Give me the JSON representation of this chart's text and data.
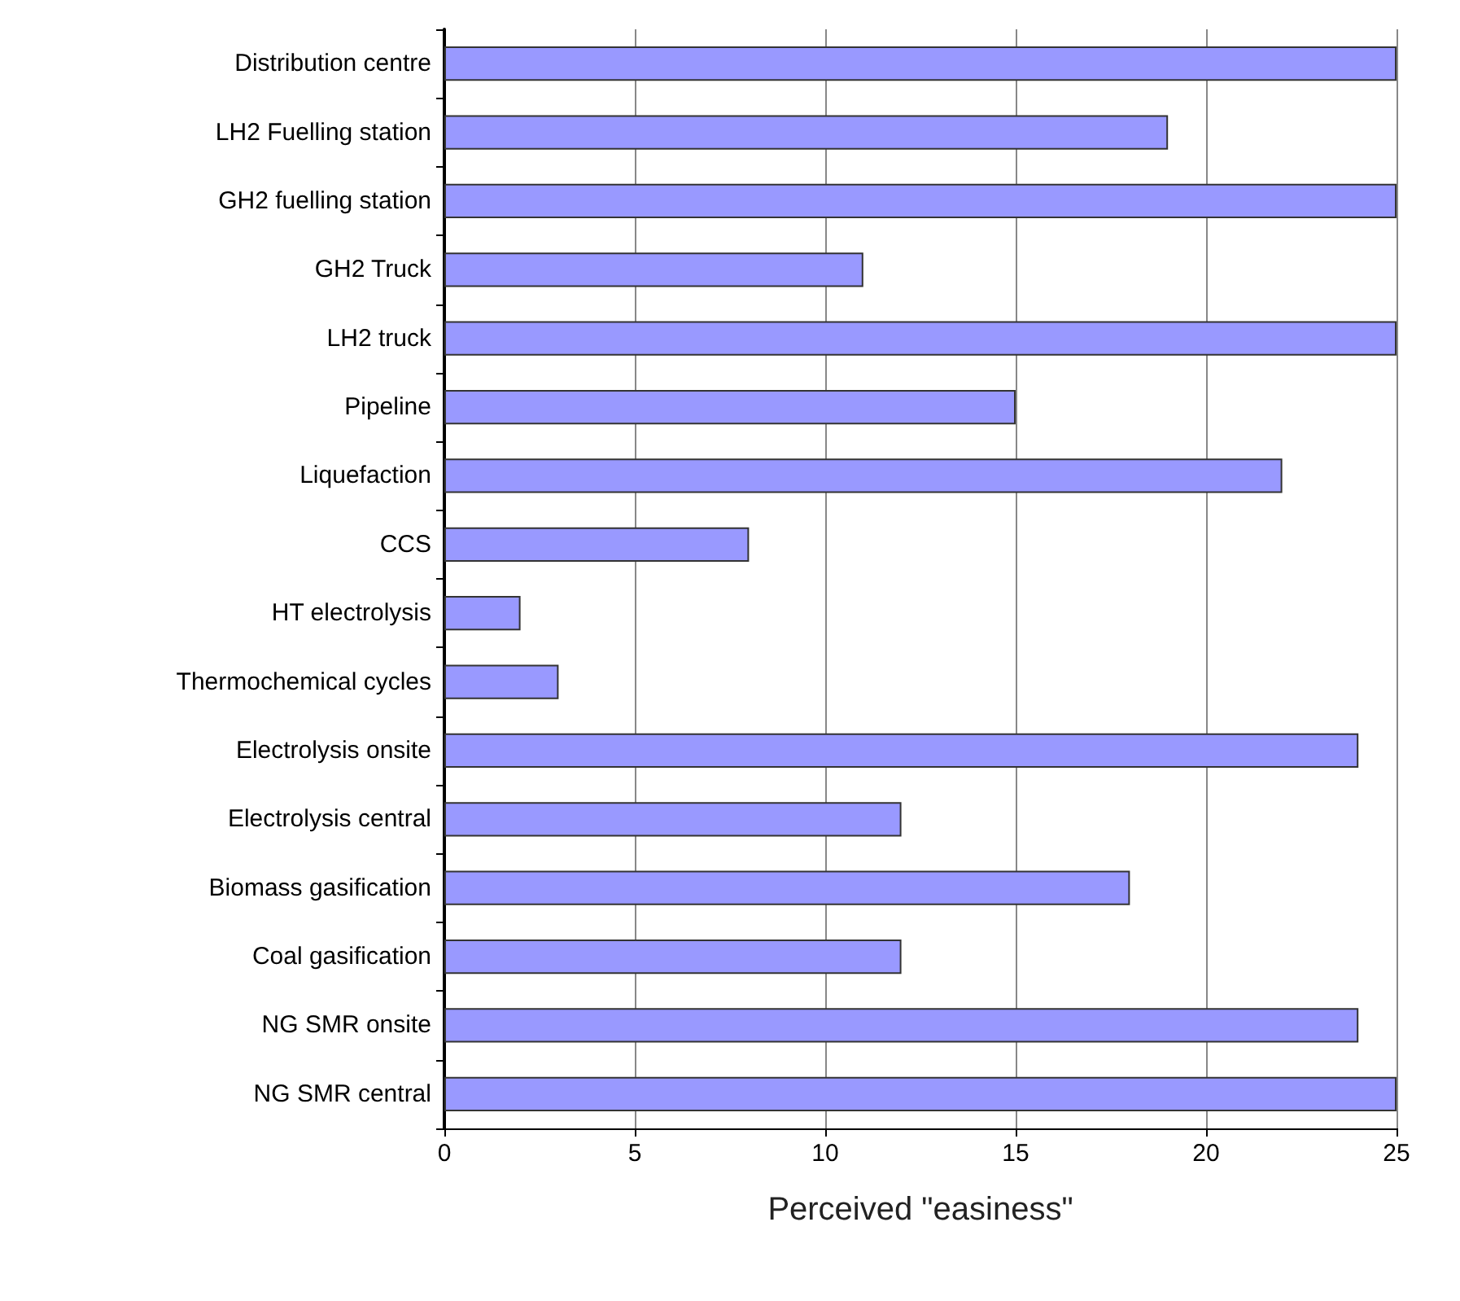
{
  "chart_data": {
    "type": "bar",
    "orientation": "horizontal",
    "xlabel": "Perceived \"easiness\"",
    "categories": [
      "Distribution centre",
      "LH2 Fuelling station",
      "GH2 fuelling station",
      "GH2 Truck",
      "LH2 truck",
      "Pipeline",
      "Liquefaction",
      "CCS",
      "HT electrolysis",
      "Thermochemical cycles",
      "Electrolysis onsite",
      "Electrolysis central",
      "Biomass gasification",
      "Coal gasification",
      "NG SMR onsite",
      "NG SMR central"
    ],
    "values": [
      25,
      19,
      25,
      11,
      25,
      15,
      22,
      8,
      2,
      3,
      24,
      12,
      18,
      12,
      24,
      25
    ],
    "color": "#9999ff",
    "xlim": [
      0,
      25
    ],
    "xticks": [
      0,
      5,
      10,
      15,
      20,
      25
    ],
    "grid": "x"
  }
}
